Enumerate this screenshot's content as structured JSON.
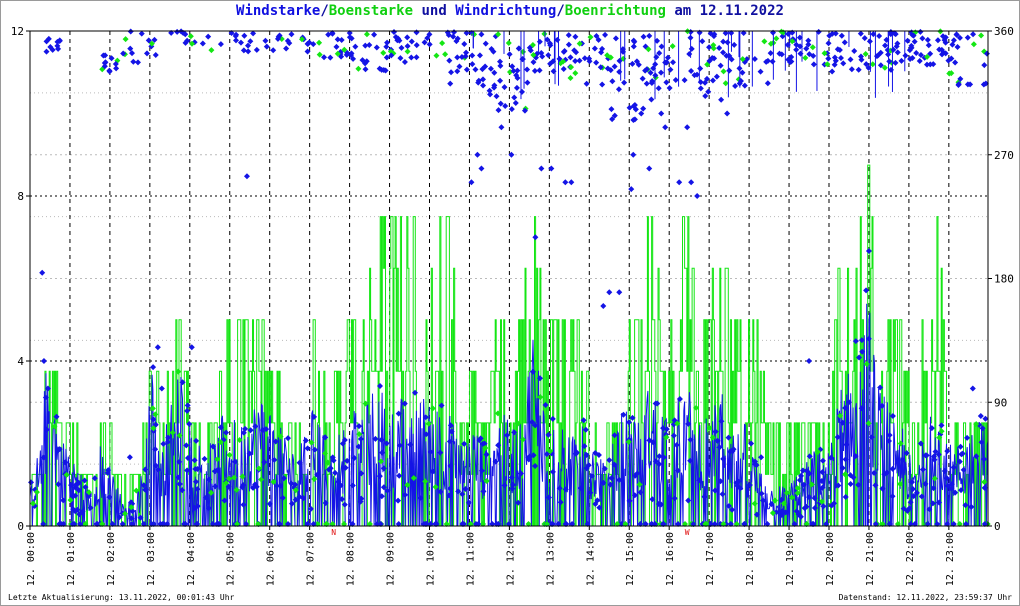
{
  "title": {
    "part1": "Windstarke",
    "sep1": "/",
    "part2": "Boenstarke",
    "part3": " und ",
    "part4": "Windrichtung",
    "sep2": "/",
    "part5": "Boenrichtung",
    "part6": " am 12.11.2022"
  },
  "footer": {
    "left": "Letzte Aktualisierung: 13.11.2022, 00:01:43 Uhr",
    "right": "Datenstand: 12.11.2022, 23:59:37 Uhr"
  },
  "colors": {
    "wind": "#1414e6",
    "gust": "#14e614",
    "marker": "#e01010",
    "grid_major": "#000000",
    "grid_minor": "#bbbbbb"
  },
  "chart_data": {
    "type": "line",
    "x_range_hours": [
      0,
      23.98
    ],
    "y_left": {
      "range": [
        0,
        12
      ],
      "ticks": [
        "0",
        "4",
        "8",
        "12"
      ]
    },
    "y_right": {
      "range": [
        0,
        360
      ],
      "ticks": [
        "0",
        "90",
        "180",
        "270",
        "360"
      ]
    },
    "x_ticks": [
      "12. 00:00",
      "12. 01:00",
      "12. 02:00",
      "12. 03:00",
      "12. 04:00",
      "12. 05:00",
      "12. 06:00",
      "12. 07:00",
      "12. 08:00",
      "12. 09:00",
      "12. 10:00",
      "12. 11:00",
      "12. 12:00",
      "12. 13:00",
      "12. 14:00",
      "12. 15:00",
      "12. 16:00",
      "12. 17:00",
      "12. 18:00",
      "12. 19:00",
      "12. 20:00",
      "12. 21:00",
      "12. 22:00",
      "12. 23:00"
    ],
    "grid": true,
    "markers": [
      {
        "x": 7.6,
        "label": "N"
      },
      {
        "x": 16.45,
        "label": "W"
      }
    ],
    "gust_envelope": [
      [
        0,
        1.2
      ],
      [
        0.25,
        2.5
      ],
      [
        0.45,
        5.0
      ],
      [
        0.75,
        2.5
      ],
      [
        1.0,
        2.5
      ],
      [
        1.5,
        1.2
      ],
      [
        1.75,
        2.5
      ],
      [
        2.0,
        2.0
      ],
      [
        2.4,
        1.0
      ],
      [
        2.75,
        1.5
      ],
      [
        3.1,
        5.0
      ],
      [
        3.3,
        2.5
      ],
      [
        3.75,
        5.0
      ],
      [
        4.1,
        2.5
      ],
      [
        4.6,
        2.5
      ],
      [
        4.9,
        5.0
      ],
      [
        5.2,
        5.0
      ],
      [
        5.5,
        5.0
      ],
      [
        5.8,
        5.0
      ],
      [
        6.2,
        3.5
      ],
      [
        6.6,
        2.5
      ],
      [
        6.9,
        2.5
      ],
      [
        7.1,
        5.0
      ],
      [
        7.5,
        2.5
      ],
      [
        7.8,
        5.0
      ],
      [
        8.1,
        5.0
      ],
      [
        8.4,
        5.0
      ],
      [
        8.7,
        7.5
      ],
      [
        9.0,
        7.5
      ],
      [
        9.3,
        7.5
      ],
      [
        9.6,
        7.5
      ],
      [
        9.9,
        5.0
      ],
      [
        10.2,
        7.5
      ],
      [
        10.5,
        7.5
      ],
      [
        10.8,
        2.5
      ],
      [
        11.1,
        3.5
      ],
      [
        11.4,
        2.5
      ],
      [
        11.7,
        5.0
      ],
      [
        12.0,
        5.0
      ],
      [
        12.3,
        5.0
      ],
      [
        12.6,
        7.5
      ],
      [
        12.9,
        5.0
      ],
      [
        13.2,
        5.0
      ],
      [
        13.5,
        5.0
      ],
      [
        13.8,
        5.0
      ],
      [
        14.1,
        3.0
      ],
      [
        14.4,
        2.0
      ],
      [
        14.7,
        3.0
      ],
      [
        14.9,
        5.0
      ],
      [
        15.2,
        5.0
      ],
      [
        15.5,
        7.5
      ],
      [
        15.8,
        5.0
      ],
      [
        16.1,
        5.0
      ],
      [
        16.4,
        7.5
      ],
      [
        16.7,
        5.0
      ],
      [
        17.0,
        5.0
      ],
      [
        17.3,
        7.5
      ],
      [
        17.6,
        5.0
      ],
      [
        17.9,
        5.0
      ],
      [
        18.2,
        5.0
      ],
      [
        18.5,
        2.5
      ],
      [
        18.8,
        2.5
      ],
      [
        19.1,
        2.5
      ],
      [
        19.4,
        2.5
      ],
      [
        19.7,
        2.5
      ],
      [
        20.0,
        2.5
      ],
      [
        20.3,
        7.5
      ],
      [
        20.6,
        5.0
      ],
      [
        20.9,
        10.0
      ],
      [
        21.2,
        5.0
      ],
      [
        21.5,
        5.0
      ],
      [
        21.8,
        5.0
      ],
      [
        22.1,
        2.5
      ],
      [
        22.4,
        5.0
      ],
      [
        22.7,
        7.5
      ],
      [
        23.0,
        2.5
      ],
      [
        23.3,
        2.5
      ],
      [
        23.6,
        2.5
      ],
      [
        23.98,
        2.5
      ]
    ],
    "wind_envelope": [
      [
        0,
        1.0
      ],
      [
        0.25,
        2.0
      ],
      [
        0.45,
        4.5
      ],
      [
        0.75,
        2.2
      ],
      [
        1.0,
        2.0
      ],
      [
        1.5,
        0.8
      ],
      [
        1.75,
        2.0
      ],
      [
        2.0,
        1.5
      ],
      [
        2.4,
        0.5
      ],
      [
        2.75,
        1.0
      ],
      [
        3.1,
        4.2
      ],
      [
        3.3,
        2.0
      ],
      [
        3.75,
        4.0
      ],
      [
        4.1,
        2.2
      ],
      [
        4.6,
        2.0
      ],
      [
        4.9,
        3.0
      ],
      [
        5.2,
        2.5
      ],
      [
        5.5,
        2.8
      ],
      [
        5.8,
        3.5
      ],
      [
        6.2,
        2.5
      ],
      [
        6.6,
        2.0
      ],
      [
        6.9,
        2.2
      ],
      [
        7.1,
        3.0
      ],
      [
        7.5,
        2.0
      ],
      [
        7.8,
        2.5
      ],
      [
        8.1,
        2.8
      ],
      [
        8.4,
        3.0
      ],
      [
        8.7,
        3.5
      ],
      [
        9.0,
        3.0
      ],
      [
        9.3,
        3.2
      ],
      [
        9.6,
        3.3
      ],
      [
        9.9,
        3.2
      ],
      [
        10.2,
        3.0
      ],
      [
        10.5,
        2.8
      ],
      [
        10.8,
        2.0
      ],
      [
        11.1,
        2.5
      ],
      [
        11.4,
        2.0
      ],
      [
        11.7,
        3.0
      ],
      [
        12.0,
        2.5
      ],
      [
        12.3,
        2.5
      ],
      [
        12.6,
        5.0
      ],
      [
        12.9,
        3.0
      ],
      [
        13.2,
        2.5
      ],
      [
        13.5,
        2.2
      ],
      [
        13.8,
        3.0
      ],
      [
        14.1,
        2.0
      ],
      [
        14.4,
        1.5
      ],
      [
        14.7,
        2.5
      ],
      [
        14.9,
        3.0
      ],
      [
        15.2,
        2.5
      ],
      [
        15.5,
        3.5
      ],
      [
        15.8,
        3.0
      ],
      [
        16.1,
        3.0
      ],
      [
        16.4,
        3.5
      ],
      [
        16.7,
        3.0
      ],
      [
        17.0,
        2.5
      ],
      [
        17.3,
        3.5
      ],
      [
        17.6,
        2.5
      ],
      [
        17.9,
        2.5
      ],
      [
        18.2,
        1.5
      ],
      [
        18.5,
        1.0
      ],
      [
        18.8,
        1.0
      ],
      [
        19.1,
        1.2
      ],
      [
        19.4,
        1.5
      ],
      [
        19.7,
        2.0
      ],
      [
        20.0,
        1.8
      ],
      [
        20.3,
        3.5
      ],
      [
        20.6,
        4.0
      ],
      [
        20.9,
        6.5
      ],
      [
        21.2,
        3.5
      ],
      [
        21.5,
        3.0
      ],
      [
        21.8,
        2.5
      ],
      [
        22.1,
        1.5
      ],
      [
        22.4,
        2.5
      ],
      [
        22.7,
        3.0
      ],
      [
        23.0,
        2.0
      ],
      [
        23.3,
        2.0
      ],
      [
        23.6,
        2.5
      ],
      [
        23.98,
        3.0
      ]
    ],
    "direction_bands_deg": [
      [
        0,
        360,
        355,
        10,
        30
      ],
      [
        0.4,
        0.8,
        345,
        355,
        10
      ],
      [
        1.8,
        2.2,
        330,
        345,
        12
      ],
      [
        2.3,
        3.2,
        335,
        360,
        15
      ],
      [
        3.5,
        4.5,
        350,
        360,
        12
      ],
      [
        4.5,
        6.0,
        345,
        360,
        16
      ],
      [
        6.0,
        7.0,
        345,
        360,
        16
      ],
      [
        7.0,
        8.0,
        340,
        360,
        18
      ],
      [
        8.0,
        9.0,
        330,
        360,
        25
      ],
      [
        9.0,
        10.5,
        335,
        360,
        30
      ],
      [
        10.5,
        11.5,
        320,
        360,
        30
      ],
      [
        11.5,
        12.5,
        300,
        360,
        40
      ],
      [
        12.5,
        13.5,
        330,
        360,
        30
      ],
      [
        13.5,
        14.5,
        320,
        360,
        30
      ],
      [
        14.5,
        15.5,
        290,
        360,
        35
      ],
      [
        15.5,
        17.0,
        310,
        360,
        45
      ],
      [
        17.0,
        18.5,
        320,
        360,
        40
      ],
      [
        18.5,
        19.5,
        335,
        360,
        30
      ],
      [
        19.5,
        21.0,
        330,
        360,
        35
      ],
      [
        21.0,
        22.0,
        330,
        360,
        30
      ],
      [
        22.0,
        23.0,
        335,
        360,
        35
      ],
      [
        23.0,
        23.98,
        320,
        360,
        25
      ]
    ],
    "direction_outliers_deg": [
      [
        0.35,
        120
      ],
      [
        0.45,
        100
      ],
      [
        2.5,
        50
      ],
      [
        3.2,
        130
      ],
      [
        3.3,
        100
      ],
      [
        4.05,
        130
      ],
      [
        11.05,
        250
      ],
      [
        11.2,
        270
      ],
      [
        11.3,
        260
      ],
      [
        11.8,
        290
      ],
      [
        12.05,
        270
      ],
      [
        12.65,
        210
      ],
      [
        12.8,
        260
      ],
      [
        13.05,
        260
      ],
      [
        13.4,
        250
      ],
      [
        13.55,
        250
      ],
      [
        14.35,
        160
      ],
      [
        14.5,
        170
      ],
      [
        14.75,
        170
      ],
      [
        15.05,
        245
      ],
      [
        15.1,
        270
      ],
      [
        15.3,
        300
      ],
      [
        15.5,
        260
      ],
      [
        15.8,
        300
      ],
      [
        15.9,
        290
      ],
      [
        16.25,
        250
      ],
      [
        16.45,
        290
      ],
      [
        16.55,
        250
      ],
      [
        16.7,
        240
      ],
      [
        17.3,
        310
      ],
      [
        17.45,
        300
      ],
      [
        17.65,
        320
      ],
      [
        18.05,
        60
      ],
      [
        18.3,
        50
      ],
      [
        19.5,
        120
      ],
      [
        20.5,
        90
      ],
      [
        21.0,
        200
      ],
      [
        21.6,
        80
      ],
      [
        22.3,
        60
      ],
      [
        22.9,
        40
      ],
      [
        23.6,
        100
      ],
      [
        23.8,
        80
      ]
    ]
  }
}
